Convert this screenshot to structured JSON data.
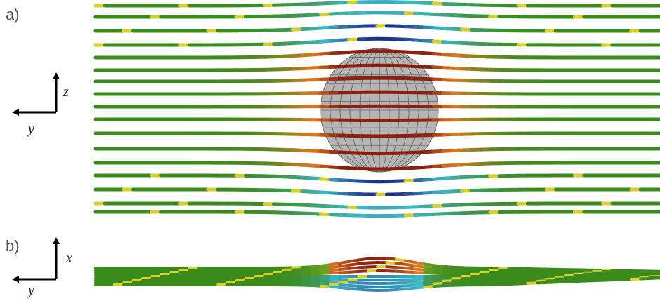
{
  "panels": [
    {
      "label": "a)",
      "axes": {
        "vertical": "z",
        "horizontal": "y"
      }
    },
    {
      "label": "b)",
      "axes": {
        "vertical": "x",
        "horizontal": "y"
      }
    }
  ],
  "colors": {
    "stream_green": "#3a8a1c",
    "stream_yellow": "#d8cf2a",
    "stream_cyan": "#3fb8c4",
    "stream_blue": "#1e2e8c",
    "stream_orange": "#e07a22",
    "stream_red": "#8a2010",
    "sphere_fill": "#b4b4b4",
    "sphere_grid": "#6a6a6a",
    "axis_arrow": "#000000"
  }
}
